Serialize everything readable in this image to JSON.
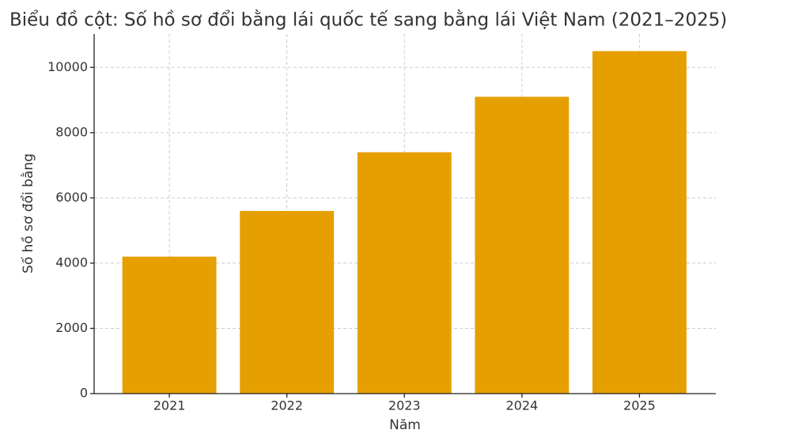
{
  "chart_data": {
    "type": "bar",
    "title": "Biểu đồ cột: Số hồ sơ đổi bằng lái quốc tế sang bằng lái Việt Nam (2021–2025)",
    "x_label": "Năm",
    "y_label": "Số hồ sơ đổi bằng",
    "categories": [
      "2021",
      "2022",
      "2023",
      "2024",
      "2025"
    ],
    "values": [
      4200,
      5600,
      7400,
      9100,
      10500
    ],
    "color": "#e69f00",
    "ylim": [
      0,
      11025
    ],
    "yticks": [
      0,
      2000,
      4000,
      6000,
      8000,
      10000
    ],
    "grid": true
  }
}
